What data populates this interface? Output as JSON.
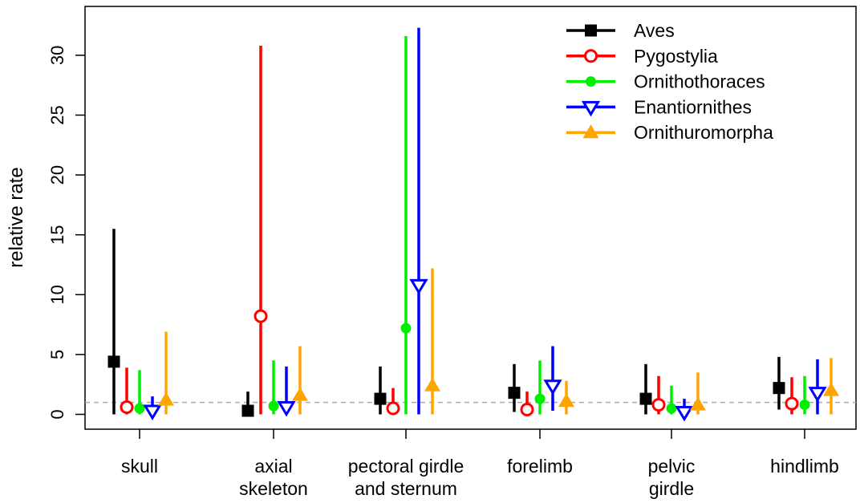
{
  "chart_data": {
    "type": "scatter",
    "subtype": "point-with-interval",
    "title": "",
    "xlabel": "",
    "ylabel": "relative rate",
    "ylim": [
      -1.3,
      33
    ],
    "yticks": [
      0,
      5,
      10,
      15,
      20,
      25,
      30
    ],
    "reference_line": {
      "y": 1,
      "style": "dashed",
      "color": "#aaaaaa"
    },
    "categories": [
      [
        "skull"
      ],
      [
        "axial",
        "skeleton"
      ],
      [
        "pectoral girdle",
        "and sternum"
      ],
      [
        "forelimb"
      ],
      [
        "pelvic",
        "girdle"
      ],
      [
        "hindlimb"
      ]
    ],
    "legend_position": "top-right",
    "series": [
      {
        "name": "Aves",
        "color": "#000000",
        "marker": "filled-square",
        "points": [
          [
            4.4,
            0,
            15.5
          ],
          [
            0.3,
            0,
            1.9
          ],
          [
            1.3,
            0,
            4.0
          ],
          [
            1.8,
            0.2,
            4.2
          ],
          [
            1.3,
            0,
            4.2
          ],
          [
            2.2,
            0.4,
            4.8
          ]
        ]
      },
      {
        "name": "Pygostylia",
        "color": "#ff0000",
        "marker": "open-circle",
        "points": [
          [
            0.6,
            0,
            3.9
          ],
          [
            8.2,
            0,
            30.8
          ],
          [
            0.5,
            0,
            2.2
          ],
          [
            0.4,
            0,
            1.9
          ],
          [
            0.8,
            0,
            3.2
          ],
          [
            0.9,
            0,
            3.1
          ]
        ]
      },
      {
        "name": "Ornithothoraces",
        "color": "#00ee00",
        "marker": "filled-circle",
        "points": [
          [
            0.5,
            0,
            3.7
          ],
          [
            0.7,
            0,
            4.5
          ],
          [
            7.2,
            0,
            31.6
          ],
          [
            1.3,
            0,
            4.5
          ],
          [
            0.5,
            0,
            2.4
          ],
          [
            0.8,
            0,
            3.2
          ]
        ]
      },
      {
        "name": "Enantiornithes",
        "color": "#0000ff",
        "marker": "open-triangle-down",
        "points": [
          [
            0.3,
            0,
            1.5
          ],
          [
            0.6,
            0,
            4.0
          ],
          [
            10.8,
            0,
            32.3
          ],
          [
            2.4,
            0.3,
            5.7
          ],
          [
            0.2,
            0,
            1.3
          ],
          [
            1.8,
            0,
            4.6
          ]
        ]
      },
      {
        "name": "Ornithuromorpha",
        "color": "#ffa500",
        "marker": "filled-triangle-up",
        "points": [
          [
            1.2,
            0,
            6.9
          ],
          [
            1.6,
            0,
            5.7
          ],
          [
            2.4,
            0,
            12.2
          ],
          [
            1.1,
            0,
            2.8
          ],
          [
            0.8,
            0,
            3.5
          ],
          [
            2.0,
            0,
            4.7
          ]
        ]
      }
    ]
  }
}
